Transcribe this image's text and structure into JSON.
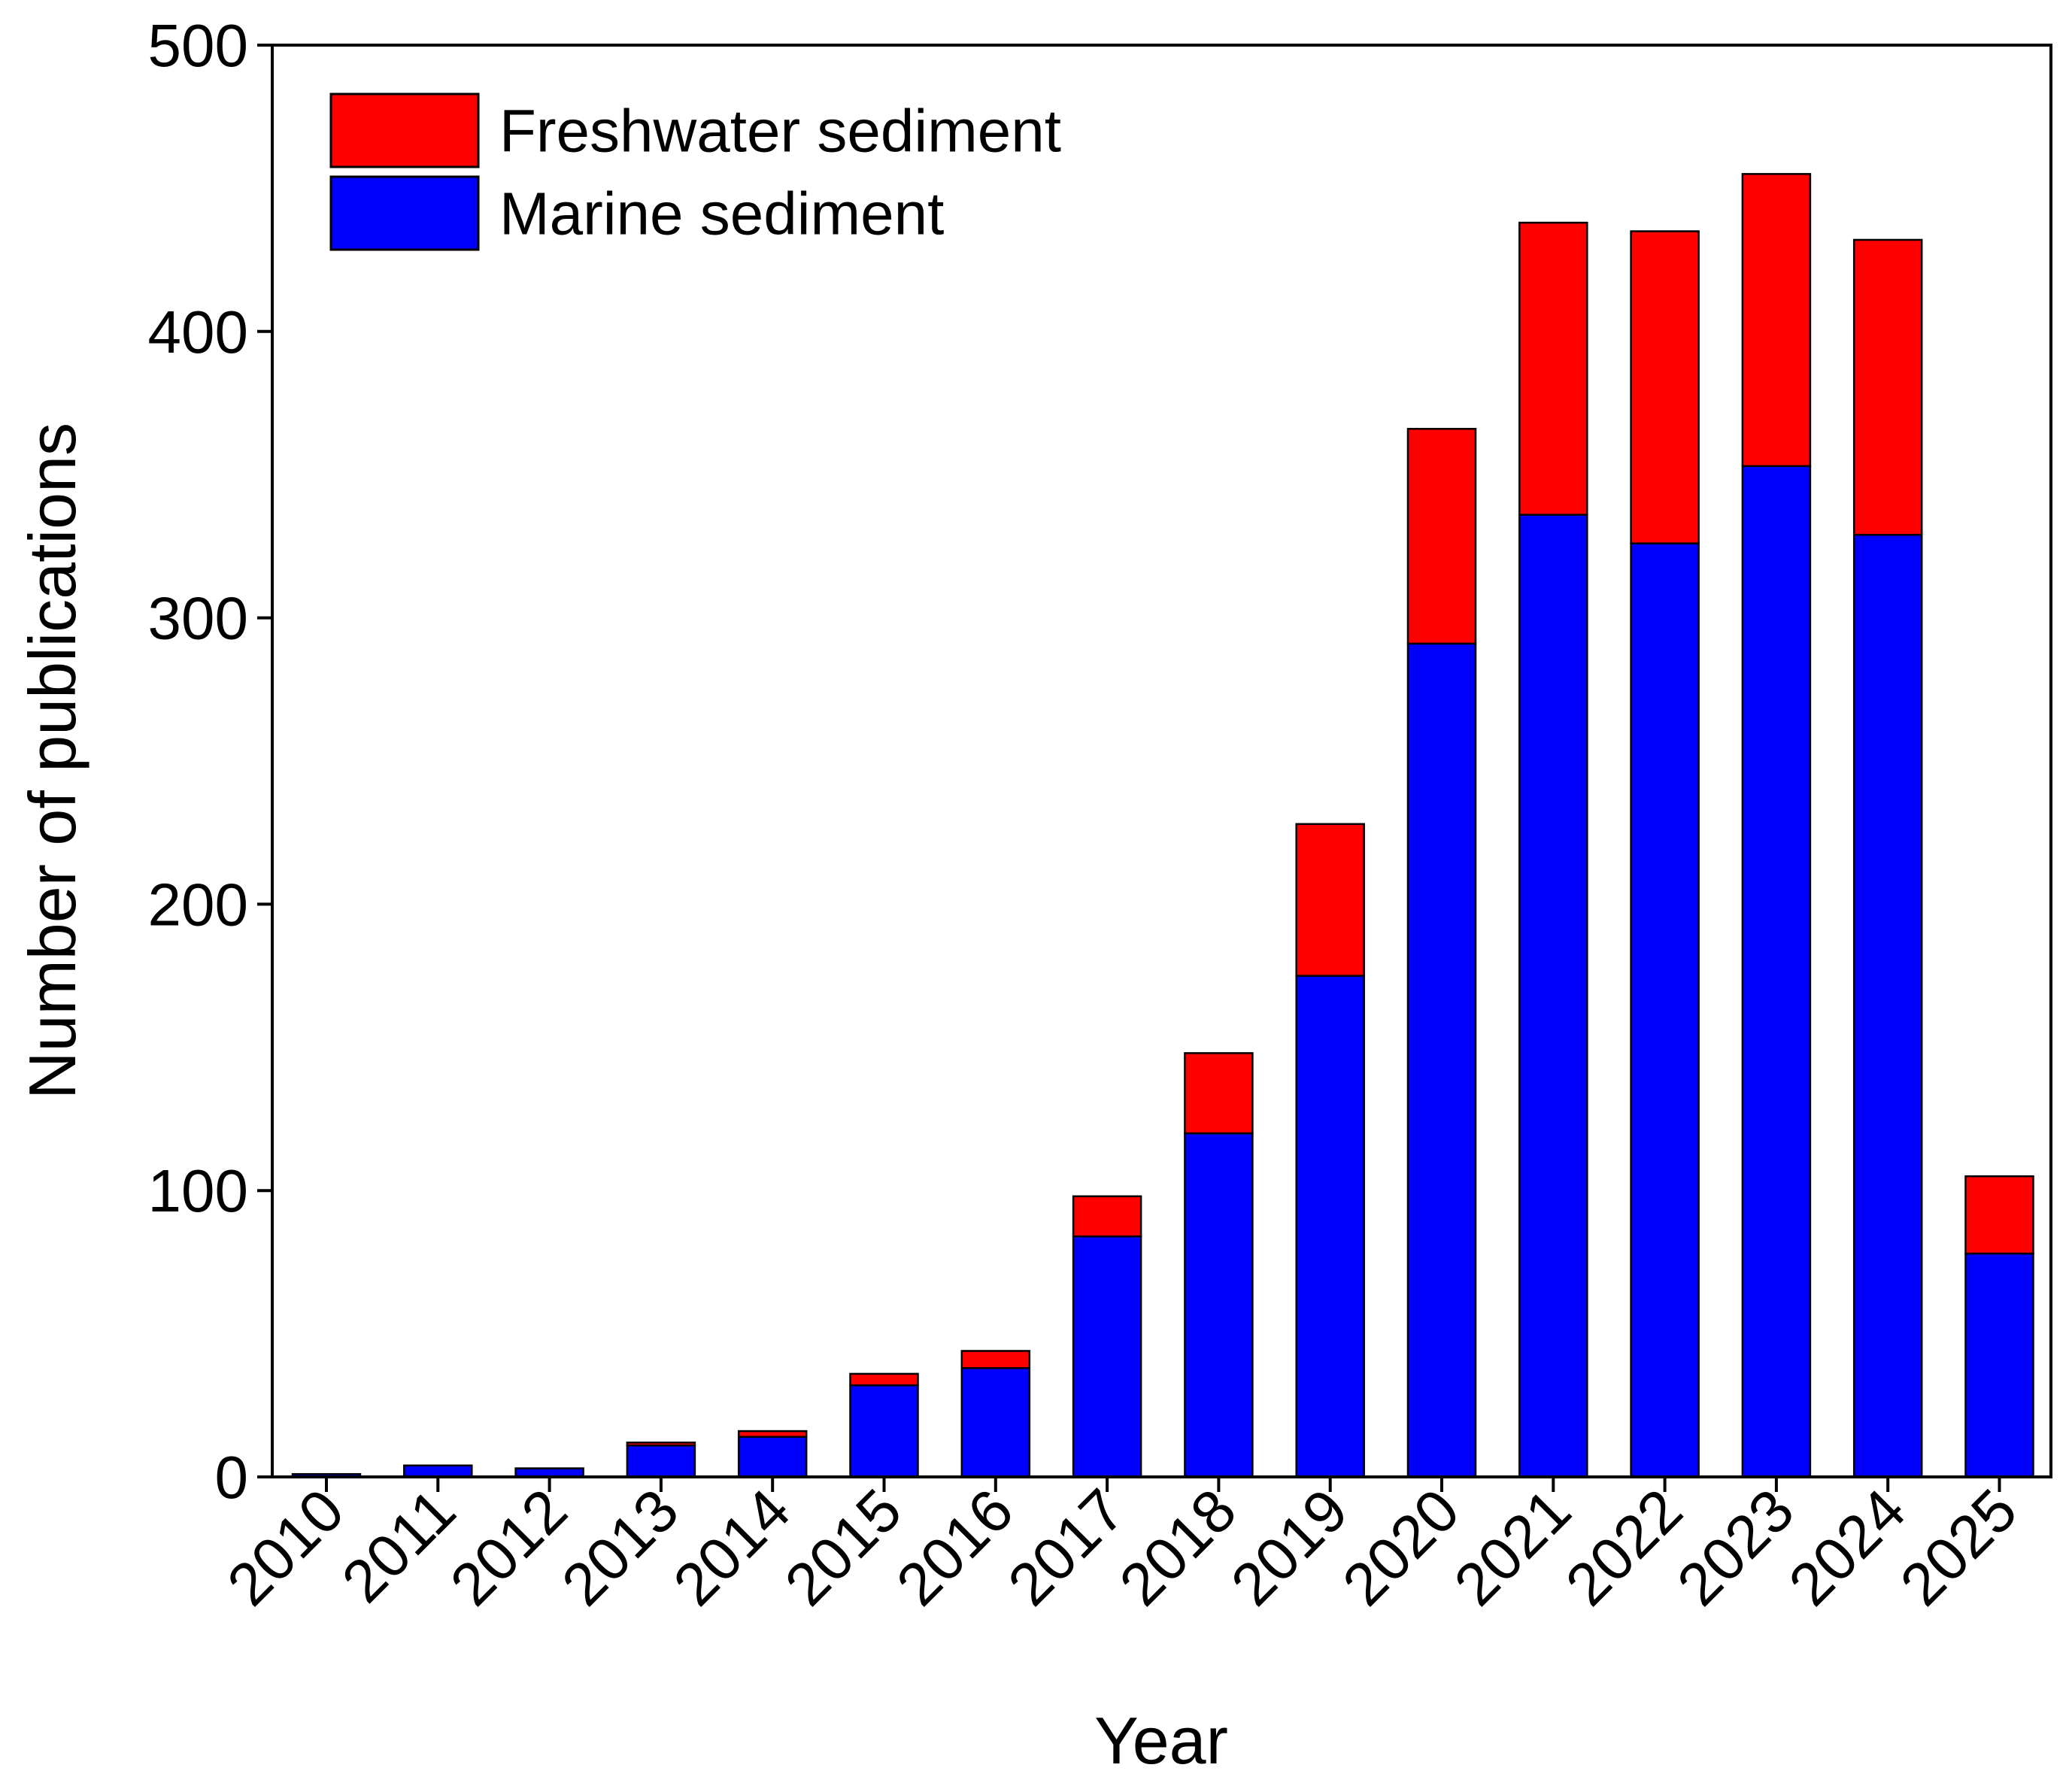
{
  "chart_data": {
    "type": "bar",
    "stacked": true,
    "title": "",
    "xlabel": "Year",
    "ylabel": "Number of publications",
    "ylim": [
      0,
      500
    ],
    "yticks": [
      0,
      100,
      200,
      300,
      400,
      500
    ],
    "grid": false,
    "legend_position": "top-left",
    "categories": [
      "2010",
      "2011",
      "2012",
      "2013",
      "2014",
      "2015",
      "2016",
      "2017",
      "2018",
      "2019",
      "2020",
      "2021",
      "2022",
      "2023",
      "2024",
      "2025"
    ],
    "series": [
      {
        "name": "Marine sediment",
        "color": "#0000ff",
        "values": [
          1,
          4,
          3,
          11,
          14,
          32,
          38,
          84,
          120,
          175,
          291,
          336,
          326,
          353,
          329,
          78
        ]
      },
      {
        "name": "Freshwater sediment",
        "color": "#ff0000",
        "values": [
          0,
          0,
          0,
          1,
          2,
          4,
          6,
          14,
          28,
          53,
          75,
          102,
          109,
          102,
          103,
          27
        ]
      }
    ],
    "legend_order": [
      "Freshwater sediment",
      "Marine sediment"
    ]
  }
}
